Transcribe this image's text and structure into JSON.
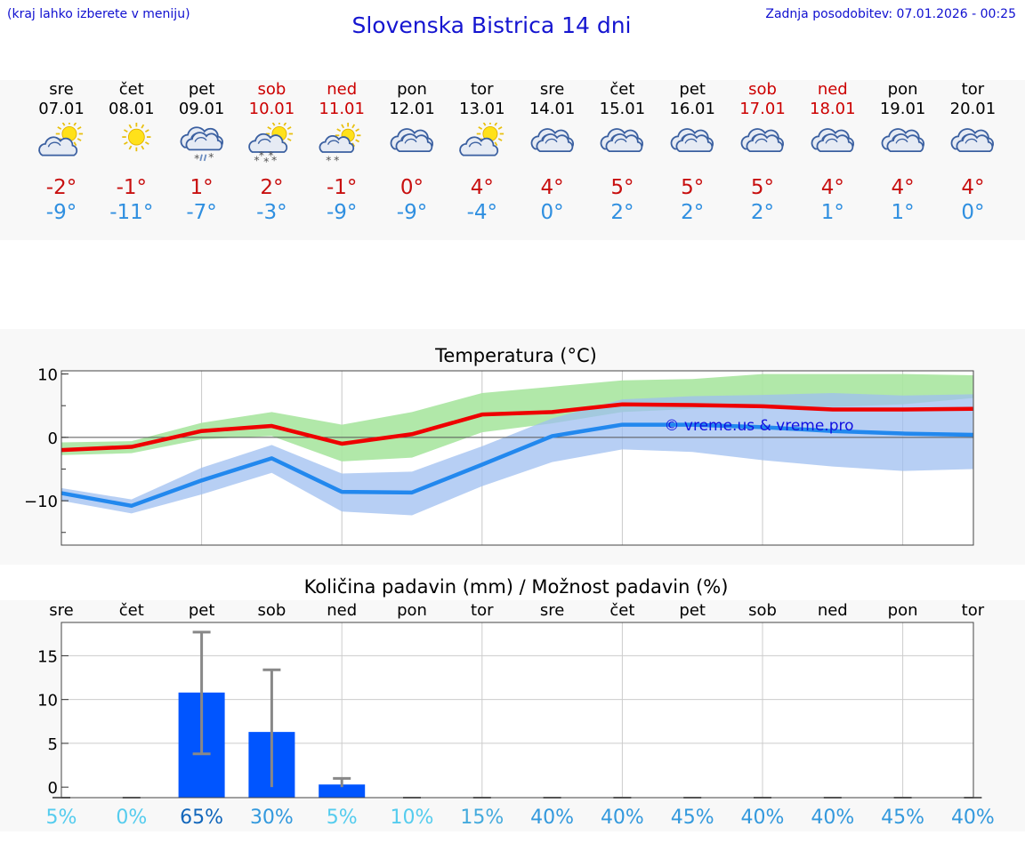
{
  "header": {
    "hint": "(kraj lahko izberete v meniju)",
    "title": "Slovenska Bistrica 14 dni",
    "updated": "Zadnja posodobitev: 07.01.2026 - 00:25"
  },
  "days": [
    {
      "name": "sre",
      "date": "07.01",
      "weekend": false,
      "icon": "sun-cloud-icon",
      "max": "-2°",
      "min": "-9°"
    },
    {
      "name": "čet",
      "date": "08.01",
      "weekend": false,
      "icon": "sun-icon",
      "max": "-1°",
      "min": "-11°"
    },
    {
      "name": "pet",
      "date": "09.01",
      "weekend": false,
      "icon": "cloud-sleet-icon",
      "max": "1°",
      "min": "-7°"
    },
    {
      "name": "sob",
      "date": "10.01",
      "weekend": true,
      "icon": "sun-cloud-snow-icon",
      "max": "2°",
      "min": "-3°"
    },
    {
      "name": "ned",
      "date": "11.01",
      "weekend": true,
      "icon": "sun-cloud-light-snow-icon",
      "max": "-1°",
      "min": "-9°"
    },
    {
      "name": "pon",
      "date": "12.01",
      "weekend": false,
      "icon": "cloud-icon",
      "max": "0°",
      "min": "-9°"
    },
    {
      "name": "tor",
      "date": "13.01",
      "weekend": false,
      "icon": "sun-cloud-icon",
      "max": "4°",
      "min": "-4°"
    },
    {
      "name": "sre",
      "date": "14.01",
      "weekend": false,
      "icon": "cloud-icon",
      "max": "4°",
      "min": "0°"
    },
    {
      "name": "čet",
      "date": "15.01",
      "weekend": false,
      "icon": "cloud-icon",
      "max": "5°",
      "min": "2°"
    },
    {
      "name": "pet",
      "date": "16.01",
      "weekend": false,
      "icon": "cloud-icon",
      "max": "5°",
      "min": "2°"
    },
    {
      "name": "sob",
      "date": "17.01",
      "weekend": true,
      "icon": "cloud-icon",
      "max": "5°",
      "min": "2°"
    },
    {
      "name": "ned",
      "date": "18.01",
      "weekend": true,
      "icon": "cloud-icon",
      "max": "4°",
      "min": "1°"
    },
    {
      "name": "pon",
      "date": "19.01",
      "weekend": false,
      "icon": "cloud-icon",
      "max": "4°",
      "min": "1°"
    },
    {
      "name": "tor",
      "date": "20.01",
      "weekend": false,
      "icon": "cloud-icon",
      "max": "4°",
      "min": "0°"
    }
  ],
  "colors": {
    "max": "#ee0000",
    "min": "#2288ee",
    "max_band": "#a8e6a0",
    "min_band": "#9fbff0",
    "bar": "#0055ff"
  },
  "chart_data": [
    {
      "type": "line",
      "title": "Temperatura (°C)",
      "ylim": [
        -17,
        10.5
      ],
      "yticks": [
        10,
        0,
        -10
      ],
      "ytick_labels": [
        "10",
        "0",
        "−10"
      ],
      "x": [
        0,
        1,
        2,
        3,
        4,
        5,
        6,
        7,
        8,
        9,
        10,
        11,
        12,
        13
      ],
      "series": [
        {
          "name": "max",
          "values": [
            -2,
            -1.5,
            1,
            1.8,
            -1,
            0.5,
            3.6,
            4,
            5.2,
            5.1,
            4.9,
            4.4,
            4.4,
            4.5
          ]
        },
        {
          "name": "min",
          "values": [
            -8.8,
            -10.8,
            -6.8,
            -3.3,
            -8.6,
            -8.7,
            -4.3,
            0.2,
            2,
            2,
            1.6,
            1,
            0.6,
            0.4
          ]
        }
      ],
      "bands": [
        {
          "name": "max_range",
          "low": [
            -2.8,
            -2.5,
            -0.3,
            0.2,
            -3.8,
            -3.2,
            0.8,
            2.2,
            4,
            4.5,
            5,
            4.8,
            5.2,
            6.2
          ],
          "high": [
            -0.8,
            -0.6,
            2.3,
            4,
            2,
            4,
            7,
            8,
            9,
            9.2,
            10,
            10,
            10,
            9.8
          ]
        },
        {
          "name": "min_range",
          "low": [
            -10,
            -12,
            -9,
            -5.6,
            -11.7,
            -12.3,
            -7.7,
            -3.9,
            -1.9,
            -2.3,
            -3.6,
            -4.6,
            -5.3,
            -5
          ]
        },
        {
          "name": "min_range_high",
          "values": [
            -8,
            -9.8,
            -4.8,
            -1.2,
            -5.7,
            -5.4,
            -1.4,
            3,
            6,
            6.5,
            6.7,
            7,
            6.6,
            6.8
          ]
        }
      ],
      "annotation": "© vreme.us & vreme.pro"
    },
    {
      "type": "bar",
      "title": "Količina padavin (mm) / Možnost padavin (%)",
      "ylim": [
        -1.2,
        18.8
      ],
      "yticks": [
        0,
        5,
        10,
        15
      ],
      "categories": [
        "sre",
        "čet",
        "pet",
        "sob",
        "ned",
        "pon",
        "tor",
        "sre",
        "čet",
        "pet",
        "sob",
        "ned",
        "pon",
        "tor"
      ],
      "values": [
        0,
        0,
        10.8,
        6.3,
        0.3,
        0,
        0,
        0,
        0,
        0,
        0,
        0,
        0,
        0
      ],
      "error_high": [
        0,
        0,
        17.7,
        13.4,
        1,
        0,
        0,
        0,
        0,
        0,
        0,
        0,
        0,
        0
      ],
      "error_low": [
        0,
        0,
        3.8,
        0,
        0,
        0,
        0,
        0,
        0,
        0,
        0,
        0,
        0,
        0
      ],
      "probability": [
        "5%",
        "0%",
        "65%",
        "30%",
        "5%",
        "10%",
        "15%",
        "40%",
        "40%",
        "45%",
        "40%",
        "40%",
        "45%",
        "40%"
      ],
      "probability_colors": [
        "#55ccee",
        "#55ccee",
        "#1166bb",
        "#3399dd",
        "#55ccee",
        "#55ccee",
        "#44aadd",
        "#3399dd",
        "#3399dd",
        "#3399dd",
        "#3399dd",
        "#3399dd",
        "#3399dd",
        "#3399dd"
      ]
    }
  ]
}
